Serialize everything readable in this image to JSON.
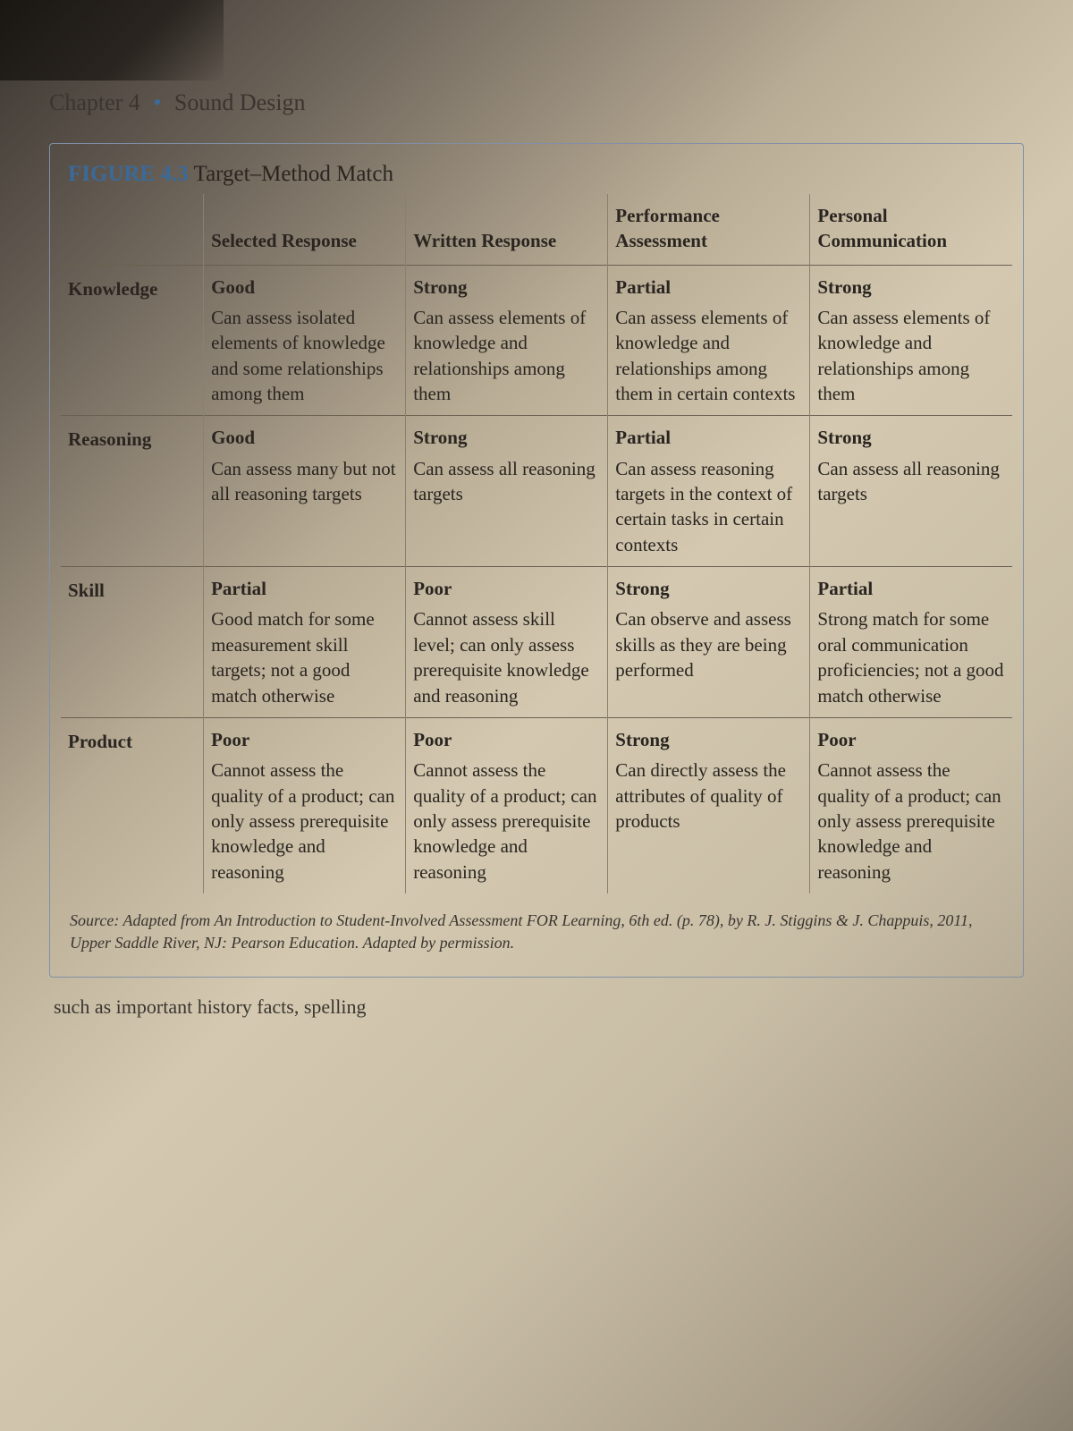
{
  "chapter": {
    "number": "Chapter 4",
    "title": "Sound Design"
  },
  "figure": {
    "label": "FIGURE 4.3",
    "name": "Target–Method Match"
  },
  "columns": {
    "stub": "",
    "c1": "Selected Response",
    "c2": "Written Response",
    "c3": "Performance Assessment",
    "c4": "Personal Communication"
  },
  "rows": {
    "knowledge": {
      "label": "Knowledge",
      "c1": {
        "rating": "Good",
        "desc": "Can assess isolated elements of knowledge and some relationships among them"
      },
      "c2": {
        "rating": "Strong",
        "desc": "Can assess elements of knowledge and relationships among them"
      },
      "c3": {
        "rating": "Partial",
        "desc": "Can assess elements of knowledge and relationships among them in certain contexts"
      },
      "c4": {
        "rating": "Strong",
        "desc": "Can assess elements of knowledge and relationships among them"
      }
    },
    "reasoning": {
      "label": "Reasoning",
      "c1": {
        "rating": "Good",
        "desc": "Can assess many but not all reasoning targets"
      },
      "c2": {
        "rating": "Strong",
        "desc": "Can assess all reasoning targets"
      },
      "c3": {
        "rating": "Partial",
        "desc": "Can assess reasoning targets in the context of certain tasks in certain contexts"
      },
      "c4": {
        "rating": "Strong",
        "desc": "Can assess all reasoning targets"
      }
    },
    "skill": {
      "label": "Skill",
      "c1": {
        "rating": "Partial",
        "desc": "Good match for some measurement skill targets; not a good match otherwise"
      },
      "c2": {
        "rating": "Poor",
        "desc": "Cannot assess skill level; can only assess prerequisite knowledge and reasoning"
      },
      "c3": {
        "rating": "Strong",
        "desc": "Can observe and assess skills as they are being performed"
      },
      "c4": {
        "rating": "Partial",
        "desc": "Strong match for some oral communication proficiencies; not a good match otherwise"
      }
    },
    "product": {
      "label": "Product",
      "c1": {
        "rating": "Poor",
        "desc": "Cannot assess the quality of a product; can only assess prerequisite knowledge and reasoning"
      },
      "c2": {
        "rating": "Poor",
        "desc": "Cannot assess the quality of a product; can only assess prerequisite knowledge and reasoning"
      },
      "c3": {
        "rating": "Strong",
        "desc": "Can directly assess the attributes of quality of products"
      },
      "c4": {
        "rating": "Poor",
        "desc": "Cannot assess the quality of a product; can only assess prerequisite knowledge and reasoning"
      }
    }
  },
  "source": {
    "prefix": "Source:",
    "text_before": " Adapted from ",
    "book": "An Introduction to Student-Involved Assessment FOR Learning,",
    "text_after": " 6th ed. (p. 78), by R. J. Stiggins & J. Chappuis, 2011, Upper Saddle River, NJ: Pearson Education. Adapted by permission."
  },
  "bottom_fragment": "such as important history facts, spelling"
}
